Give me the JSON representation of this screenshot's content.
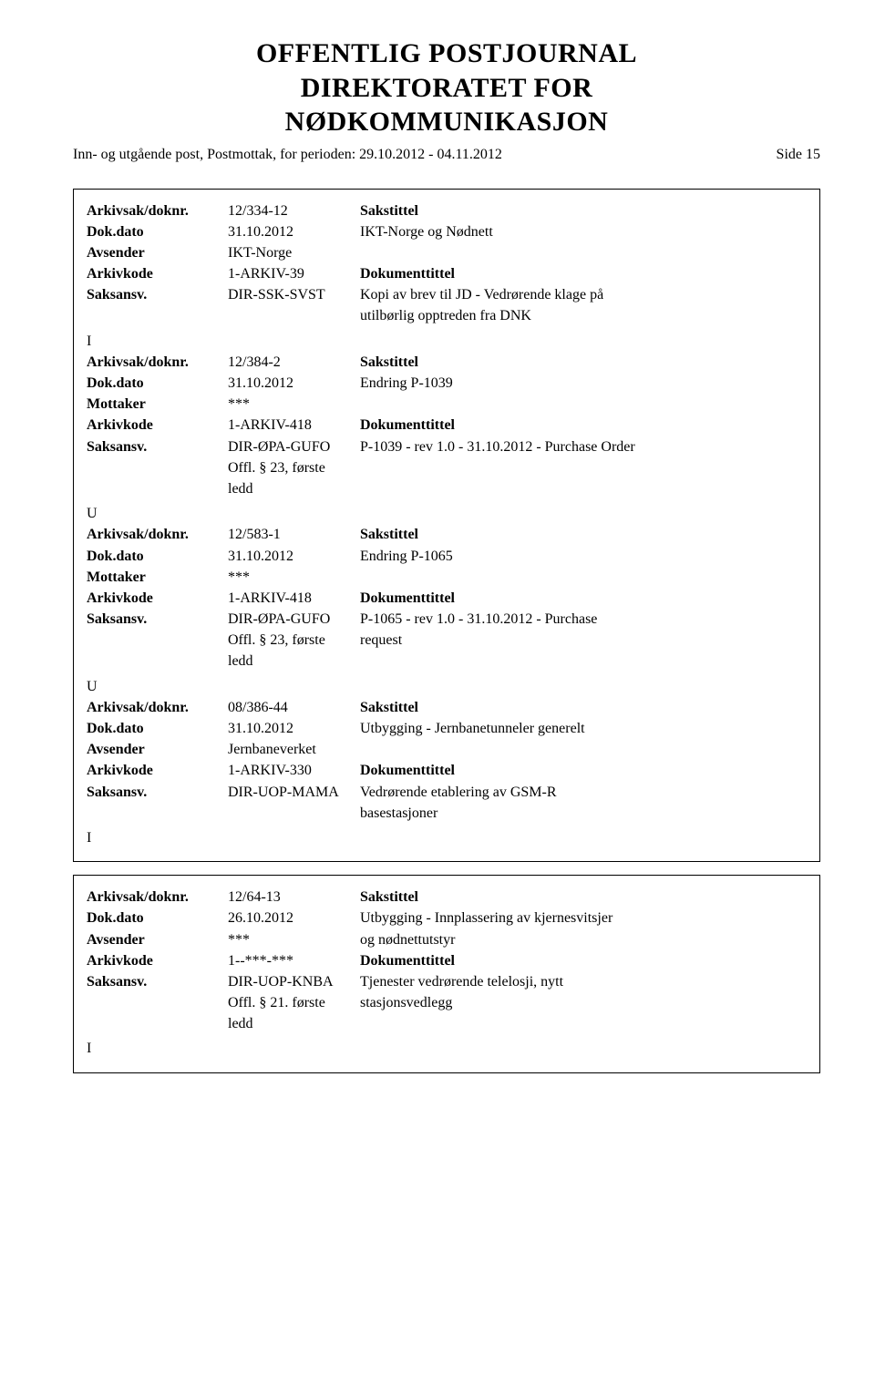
{
  "header": {
    "title_line1": "OFFENTLIG POSTJOURNAL",
    "title_line2": "DIREKTORATET FOR",
    "title_line3": "NØDKOMMUNIKASJON",
    "subtitle": "Inn- og utgående post, Postmottak, for perioden: 29.10.2012 - 04.11.2012",
    "page_label": "Side 15"
  },
  "labels": {
    "arkivsak": "Arkivsak/doknr.",
    "dokdato": "Dok.dato",
    "avsender": "Avsender",
    "mottaker": "Mottaker",
    "arkivkode": "Arkivkode",
    "saksansv": "Saksansv.",
    "sakstittel": "Sakstittel",
    "dokumenttittel": "Dokumenttittel"
  },
  "entries": [
    {
      "groups": [
        {
          "arkivsak": "12/334-12",
          "dokdato": "31.10.2012",
          "party_label": "Avsender",
          "party_value": "IKT-Norge",
          "arkivkode": "1-ARKIV-39",
          "saksansv": "DIR-SSK-SVST",
          "extra": "",
          "sakstittel": "IKT-Norge og Nødnett",
          "blank_before_doc": true,
          "doklines": [
            "Kopi av brev til JD - Vedrørende klage på",
            "utilbørlig opptreden fra DNK"
          ],
          "io": "I"
        },
        {
          "arkivsak": "12/384-2",
          "dokdato": "31.10.2012",
          "party_label": "Mottaker",
          "party_value": "***",
          "arkivkode": "1-ARKIV-418",
          "saksansv": "DIR-ØPA-GUFO",
          "extra": "Offl. § 23, første ledd",
          "sakstittel": "Endring P-1039",
          "blank_before_doc": true,
          "doklines": [
            "P-1039 - rev 1.0 - 31.10.2012 - Purchase Order"
          ],
          "io": "U"
        },
        {
          "arkivsak": "12/583-1",
          "dokdato": "31.10.2012",
          "party_label": "Mottaker",
          "party_value": "***",
          "arkivkode": "1-ARKIV-418",
          "saksansv": "DIR-ØPA-GUFO",
          "extra": "Offl. § 23, første ledd",
          "sakstittel": "Endring P-1065",
          "blank_before_doc": true,
          "doklines": [
            "P-1065 - rev 1.0 - 31.10.2012 - Purchase",
            "request"
          ],
          "io": "U"
        },
        {
          "arkivsak": "08/386-44",
          "dokdato": "31.10.2012",
          "party_label": "Avsender",
          "party_value": "Jernbaneverket",
          "arkivkode": "1-ARKIV-330",
          "saksansv": "DIR-UOP-MAMA",
          "extra": "",
          "sakstittel": "Utbygging - Jernbanetunneler generelt",
          "blank_before_doc": true,
          "doklines": [
            "Vedrørende etablering av GSM-R",
            "basestasjoner"
          ],
          "io": "I"
        }
      ]
    },
    {
      "groups": [
        {
          "arkivsak": "12/64-13",
          "dokdato": "26.10.2012",
          "party_label": "Avsender",
          "party_value": "***",
          "arkivkode": "1--***-***",
          "saksansv": "DIR-UOP-KNBA",
          "extra": "Offl. § 21. første ledd",
          "sakstittel_lines": [
            "Utbygging - Innplassering av kjernesvitsjer",
            "og nødnettutstyr"
          ],
          "doklines": [
            "Tjenester vedrørende telelosji, nytt",
            "stasjonsvedlegg"
          ],
          "io": "I"
        }
      ]
    }
  ]
}
